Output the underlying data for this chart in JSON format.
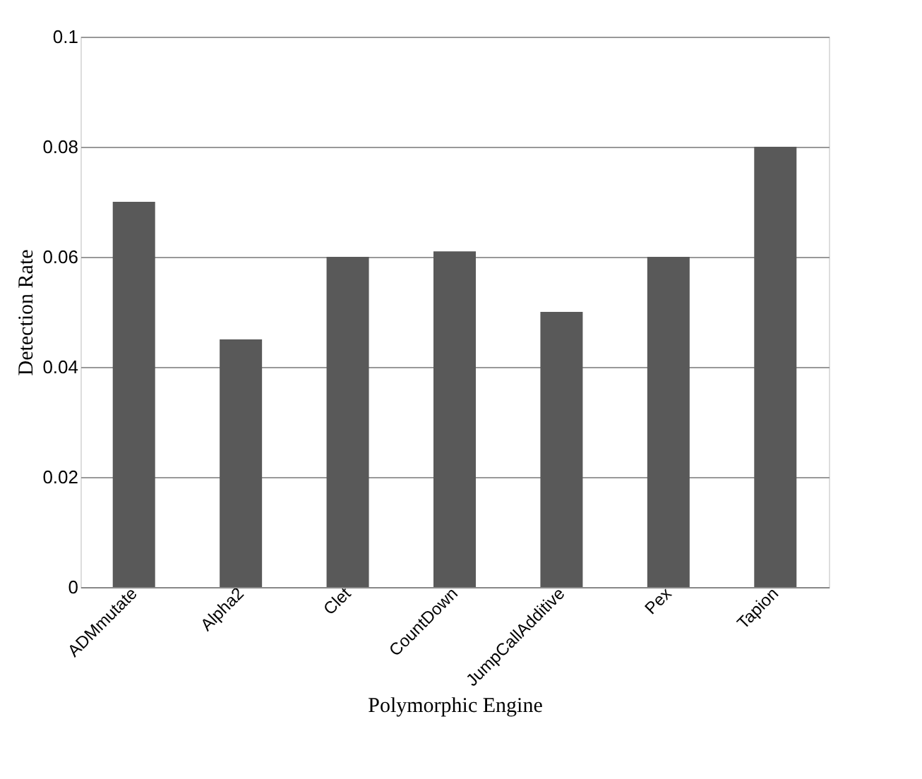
{
  "chart_data": {
    "type": "bar",
    "xlabel": "Polymorphic Engine",
    "ylabel": "Detection Rate",
    "categories": [
      "ADMmutate",
      "Alpha2",
      "Clet",
      "CountDown",
      "JumpCallAdditive",
      "Pex",
      "Tapion"
    ],
    "values": [
      0.07,
      0.045,
      0.06,
      0.061,
      0.05,
      0.06,
      0.08
    ],
    "color": "#595959",
    "ylim": [
      0,
      0.1
    ],
    "yticks": [
      0,
      0.02,
      0.04,
      0.06,
      0.08,
      0.1
    ],
    "grid": "y"
  }
}
